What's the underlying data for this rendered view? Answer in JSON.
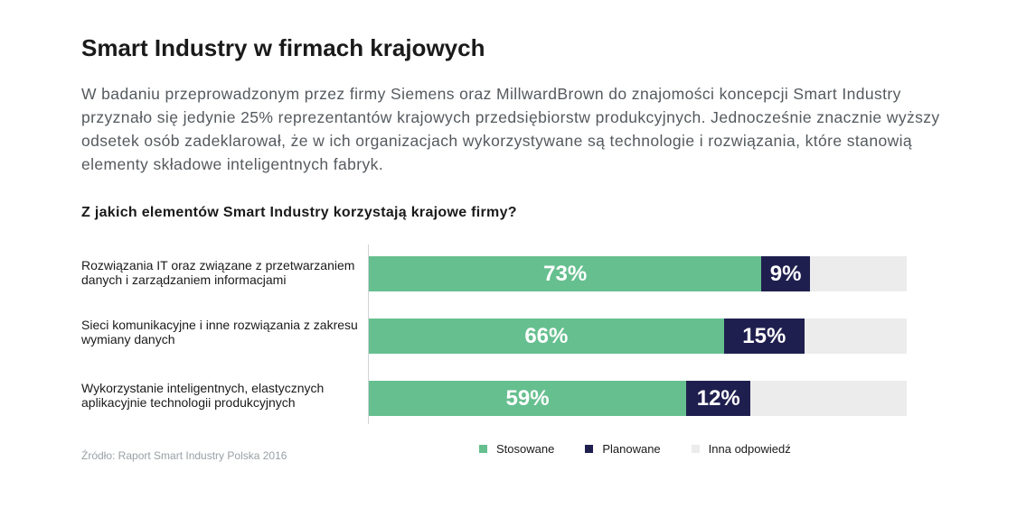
{
  "title": "Smart Industry w firmach krajowych",
  "intro": "W badaniu przeprowadzonym przez firmy Siemens oraz MillwardBrown do znajomości koncepcji Smart Industry przyznało się jedynie 25% reprezentantów krajowych przedsiębiorstw produkcyjnych. Jednocześnie znacznie wyższy odsetek osób zadeklarował, że w ich organizacjach wykorzystywane są technologie i rozwiązania, które stanowią elementy składowe inteligentnych fabryk.",
  "source": "Źródło: Raport Smart Industry Polska 2016",
  "colors": {
    "stosowane": "#66bf8f",
    "planowane": "#1f1f4f",
    "inna": "#ececec"
  },
  "chart_data": {
    "type": "bar",
    "orientation": "horizontal",
    "stacked": true,
    "title": "Z jakich elementów Smart Industry korzystają krajowe firmy?",
    "categories": [
      "Rozwiązania IT oraz związane z przetwarzaniem danych i zarządzaniem informacjami",
      "Sieci komunikacyjne i inne rozwiązania z zakresu wymiany danych",
      "Wykorzystanie inteligentnych, elastycznych aplikacyjnie technologii produkcyjnych"
    ],
    "series": [
      {
        "name": "Stosowane",
        "values": [
          73,
          66,
          59
        ],
        "labels": [
          "73%",
          "66%",
          "59%"
        ]
      },
      {
        "name": "Planowane",
        "values": [
          9,
          15,
          12
        ],
        "labels": [
          "9%",
          "15%",
          "12%"
        ]
      },
      {
        "name": "Inna odpowiedź",
        "values": [
          18,
          19,
          29
        ]
      }
    ],
    "xlim": [
      0,
      100
    ],
    "legend": "bottom-right",
    "grid": false
  }
}
